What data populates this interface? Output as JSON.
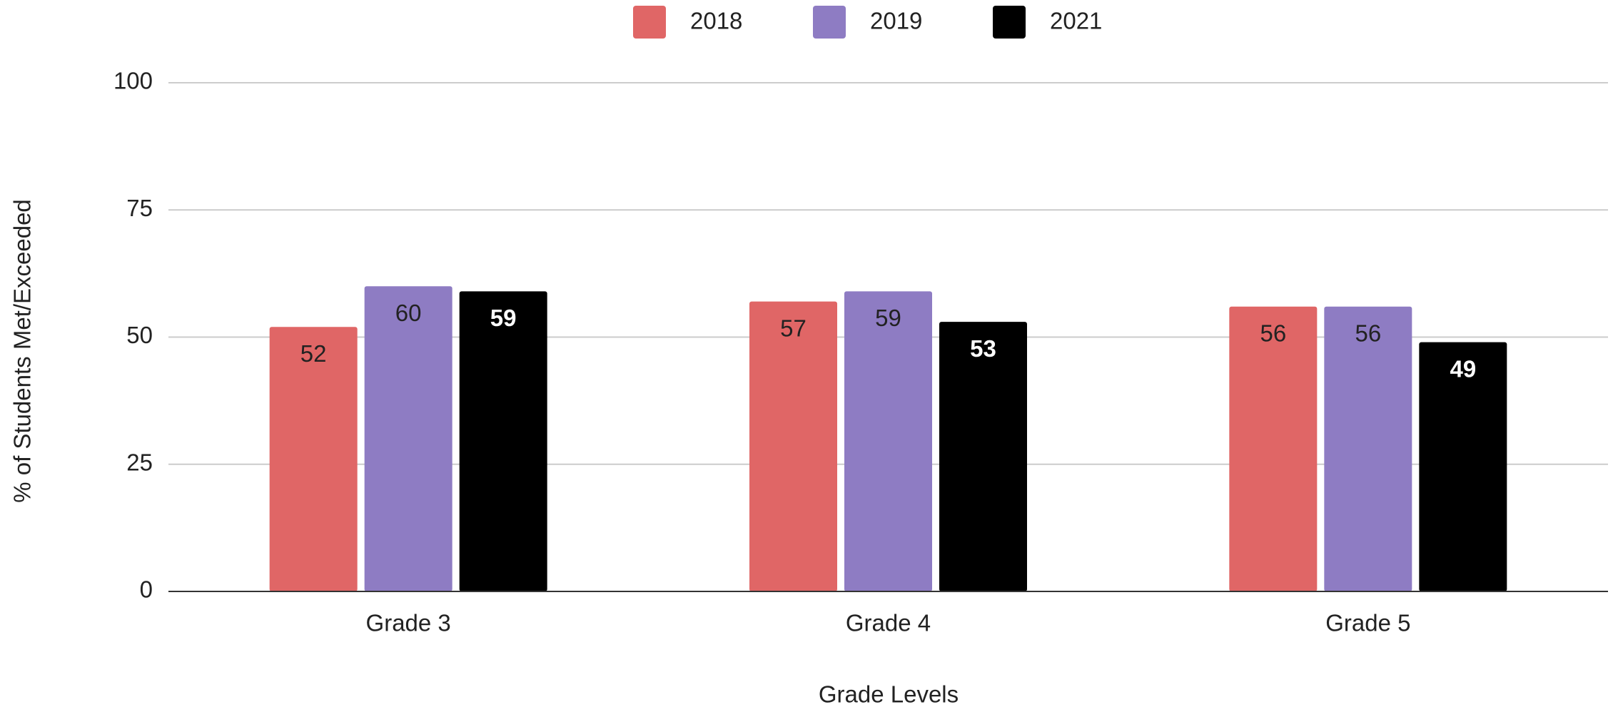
{
  "chart_data": {
    "type": "bar",
    "x_label": "Grade Levels",
    "y_label": "% of Students Met/Exceeded",
    "categories": [
      "Grade 3",
      "Grade 4",
      "Grade 5"
    ],
    "series": [
      {
        "name": "2018",
        "color": "#e06666",
        "values": [
          52,
          57,
          56
        ]
      },
      {
        "name": "2019",
        "color": "#8e7cc3",
        "values": [
          60,
          59,
          56
        ]
      },
      {
        "name": "2021",
        "color": "#000000",
        "values": [
          59,
          53,
          49
        ]
      }
    ],
    "ylim": [
      0,
      100
    ],
    "yticks": [
      0,
      25,
      50,
      75,
      100
    ],
    "grid": true,
    "legend": "top"
  }
}
